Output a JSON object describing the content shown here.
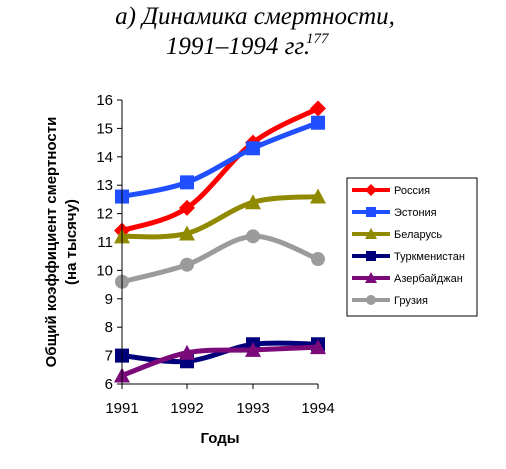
{
  "chart_data": {
    "type": "line",
    "title_line1": "а) Динамика смертности,",
    "title_line2": "1991–1994 гг.",
    "title_footnote": "177",
    "xlabel": "Годы",
    "ylabel_line1": "Общий коэффициент смертности",
    "ylabel_line2": "(на тысячу)",
    "x": [
      "1991",
      "1992",
      "1993",
      "1994"
    ],
    "ylim": [
      6,
      16
    ],
    "yticks": [
      "6",
      "7",
      "8",
      "9",
      "10",
      "11",
      "12",
      "13",
      "14",
      "15",
      "16"
    ],
    "grid": false,
    "legend_position": "right",
    "series": [
      {
        "name": "Россия",
        "values": [
          11.4,
          12.2,
          14.5,
          15.7
        ],
        "color": "#ff0000",
        "marker": "diamond"
      },
      {
        "name": "Эстония",
        "values": [
          12.6,
          13.1,
          14.3,
          15.2
        ],
        "color": "#1f4fff",
        "marker": "square"
      },
      {
        "name": "Беларусь",
        "values": [
          11.2,
          11.3,
          12.4,
          12.6
        ],
        "color": "#8f8a00",
        "marker": "triangle"
      },
      {
        "name": "Туркменистан",
        "values": [
          7.0,
          6.8,
          7.4,
          7.4
        ],
        "color": "#00007a",
        "marker": "square"
      },
      {
        "name": "Азербайджан",
        "values": [
          6.3,
          7.1,
          7.2,
          7.3
        ],
        "color": "#7a0a7a",
        "marker": "triangle"
      },
      {
        "name": "Грузия",
        "values": [
          9.6,
          10.2,
          11.2,
          10.4
        ],
        "color": "#9b9b9b",
        "marker": "circle"
      }
    ]
  }
}
